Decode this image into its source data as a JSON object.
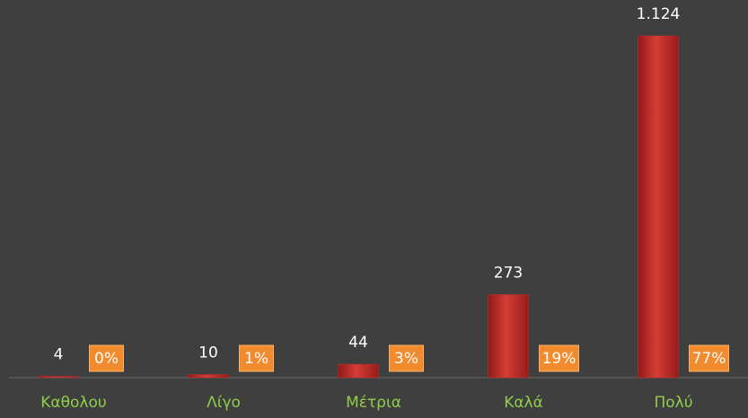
{
  "chart_data": {
    "type": "bar",
    "categories": [
      "Καθολου",
      "Λίγο",
      "Μέτρια",
      "Καλά",
      "Πολύ"
    ],
    "values": [
      4,
      10,
      44,
      273,
      1124
    ],
    "value_labels": [
      "4",
      "10",
      "44",
      "273",
      "1.124"
    ],
    "percent_labels": [
      "0%",
      "1%",
      "3%",
      "19%",
      "77%"
    ],
    "color": "#c0302c"
  }
}
